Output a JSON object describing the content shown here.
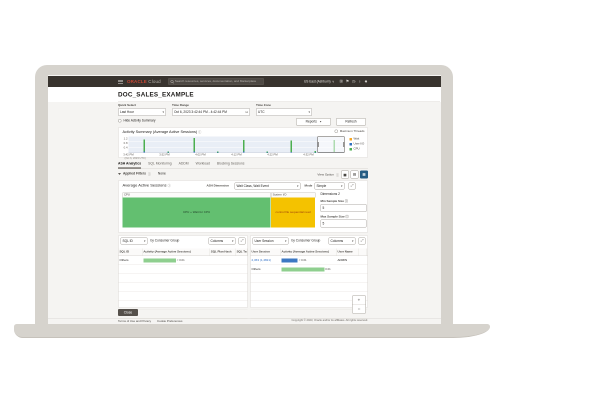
{
  "header": {
    "logo_primary": "ORACLE",
    "logo_secondary": " Cloud",
    "search_placeholder": "Search resources, services, documentation, and Marketplace",
    "region": "US East (Ashburn)",
    "region_caret": "∨",
    "icons": [
      {
        "name": "cloud-shell-icon",
        "glyph": "⊞"
      },
      {
        "name": "announcements-icon",
        "glyph": "⚑"
      },
      {
        "name": "help-icon",
        "glyph": "◷"
      },
      {
        "name": "language-icon",
        "glyph": "♁"
      },
      {
        "name": "profile-icon",
        "glyph": "☻"
      }
    ]
  },
  "page": {
    "title": "DOC_SALES_EXAMPLE"
  },
  "time_controls": {
    "quick_select_label": "Quick Select",
    "quick_select_value": "Last Hour",
    "time_range_label": "Time Range",
    "time_range_value": "Oct 6, 2023 3:42:44 PM - 4:42:44 PM",
    "calendar_icon": "⊟",
    "time_zone_label": "Time Zone",
    "time_zone_value": "UTC",
    "caret": "▾"
  },
  "actions": {
    "hide_summary_label": "Hide Activity Summary",
    "reports_label": "Reports",
    "refresh_label": "Refresh"
  },
  "activity_summary": {
    "title": "Activity Summary (Average Active Sessions)",
    "info_icon": "ⓘ",
    "max_threads_label": "Maximum Threads"
  },
  "tabs": [
    {
      "label": "ASH Analytics",
      "active": true
    },
    {
      "label": "SQL Monitoring",
      "active": false
    },
    {
      "label": "ADDM",
      "active": false
    },
    {
      "label": "Workload",
      "active": false
    },
    {
      "label": "Blocking Sessions",
      "active": false
    }
  ],
  "filter_bar": {
    "applied_filters_label": "Applied Filters",
    "info_icon": "ⓘ",
    "value": "None",
    "view_option_label": "View Option",
    "buttons": [
      {
        "name": "view-area-chart-button",
        "glyph": "▅",
        "selected": false
      },
      {
        "name": "view-bar-chart-button",
        "glyph": "▤",
        "selected": false
      },
      {
        "name": "view-treemap-button",
        "glyph": "▦",
        "selected": true
      }
    ]
  },
  "aas_panel": {
    "title": "Average Active Sessions",
    "info_icon": "ⓘ",
    "ash_dimension_label": "ASH Dimension",
    "ash_dimension_value": "Wait Class, Wait Event",
    "mode_label": "Mode",
    "mode_value": "Simple",
    "expand_icon": "⤢",
    "dimensions_label": "Dimensions 2",
    "min_sample_label": "Min Sample Size",
    "min_sample_value": "5",
    "max_sample_label": "Max Sample Size",
    "max_sample_value": "5"
  },
  "sql_panel": {
    "dimension_value": "SQL ID",
    "by_label": "by Consumer Group",
    "columns_label": "Columns",
    "expand_icon": "⤢"
  },
  "session_panel": {
    "dimension_value": "User Session",
    "by_label": "by Consumer Group",
    "columns_label": "Columns",
    "expand_icon": "⤢"
  },
  "footer": {
    "close_label": "Close",
    "links": [
      "Terms of Use and Privacy",
      "Cookie Preferences"
    ],
    "copyright": "Copyright © 2023, Oracle and/or its affiliates. All rights reserved."
  },
  "colors": {
    "oracle_red": "#c74634",
    "header_bg": "#38332e",
    "page_bg": "#f5f4f2",
    "cpu_green": "#4caf50",
    "io_blue": "#2f6fbf",
    "wait_orange": "#f5a623",
    "treemap_green": "#63bf70",
    "treemap_yellow": "#f4c200",
    "selected_navy": "#255c83",
    "link_blue": "#306fc5"
  },
  "chart_data": [
    {
      "type": "bar",
      "title": "Activity Summary (Average Active Sessions)",
      "ylabel": "Average Active Sessions",
      "ylim": [
        0,
        1.4
      ],
      "yticks": [
        "1.2",
        "0.8",
        "0.4"
      ],
      "x_ticklabels": [
        "3:42 PM",
        "3:52 PM",
        "4:02 PM",
        "4:12 PM",
        "4:22 PM",
        "4:32 PM"
      ],
      "x_first_sublabel": "(Oct 6, 2023 UTC)",
      "legend": [
        {
          "name": "Wait",
          "color": "#f5a623"
        },
        {
          "name": "User I/O",
          "color": "#2f6fbf"
        },
        {
          "name": "CPU",
          "color": "#4caf50"
        }
      ],
      "spikes": [
        {
          "pos": 0.07,
          "cpu": 1.15,
          "io": 0.08
        },
        {
          "pos": 0.18,
          "cpu": 0.1,
          "io": 0.02
        },
        {
          "pos": 0.3,
          "cpu": 1.25,
          "io": 0.08
        },
        {
          "pos": 0.41,
          "cpu": 0.1,
          "io": 0.02
        },
        {
          "pos": 0.53,
          "cpu": 1.1,
          "io": 0.08
        },
        {
          "pos": 0.64,
          "cpu": 0.1,
          "io": 0.02
        },
        {
          "pos": 0.75,
          "cpu": 1.05,
          "io": 0.06
        },
        {
          "pos": 0.86,
          "cpu": 0.12,
          "io": 0.02
        },
        {
          "pos": 0.95,
          "cpu": 1.1,
          "io": 0.06
        }
      ],
      "brush": {
        "start": 0.875,
        "end": 1.0
      }
    },
    {
      "type": "heatmap",
      "subtype": "treemap",
      "title": "Average Active Sessions by Wait Class, Wait Event",
      "cells": [
        {
          "label": "CPU",
          "text": "CPU + Wait for CPU",
          "color": "#63bf70",
          "text_color": "#22402a",
          "fraction": 0.77
        },
        {
          "label": "System I/O",
          "text": "control file sequential read",
          "color": "#f4c200",
          "text_color": "#a0430a",
          "fraction": 0.23
        }
      ]
    },
    {
      "type": "table",
      "title": "SQL ID by Consumer Group",
      "columns": [
        "SQL ID",
        "Activity (Average Active Sessions)",
        "SQL Plan Hash",
        "SQL Text"
      ],
      "rows": [
        {
          "id": "Others",
          "id_link": false,
          "bar_fraction": 0.57,
          "bar_color": "#8fcf8f",
          "value": "< 0.01",
          "extra": ""
        }
      ],
      "empty_rows": 6
    },
    {
      "type": "table",
      "title": "User Session by Consumer Group",
      "columns": [
        "User Session",
        "Activity (Average Active Sessions)",
        "User Name",
        ""
      ],
      "rows": [
        {
          "id": "2,363 (1,4821)",
          "id_link": true,
          "bar_fraction": 0.36,
          "bar_color": "#3c78c3",
          "value": "< 0.01",
          "extra": "ADMIN"
        },
        {
          "id": "Others",
          "id_link": false,
          "bar_fraction": 0.95,
          "bar_color": "#8fcf8f",
          "value": "0.01",
          "extra": ""
        }
      ],
      "empty_rows": 5
    }
  ]
}
